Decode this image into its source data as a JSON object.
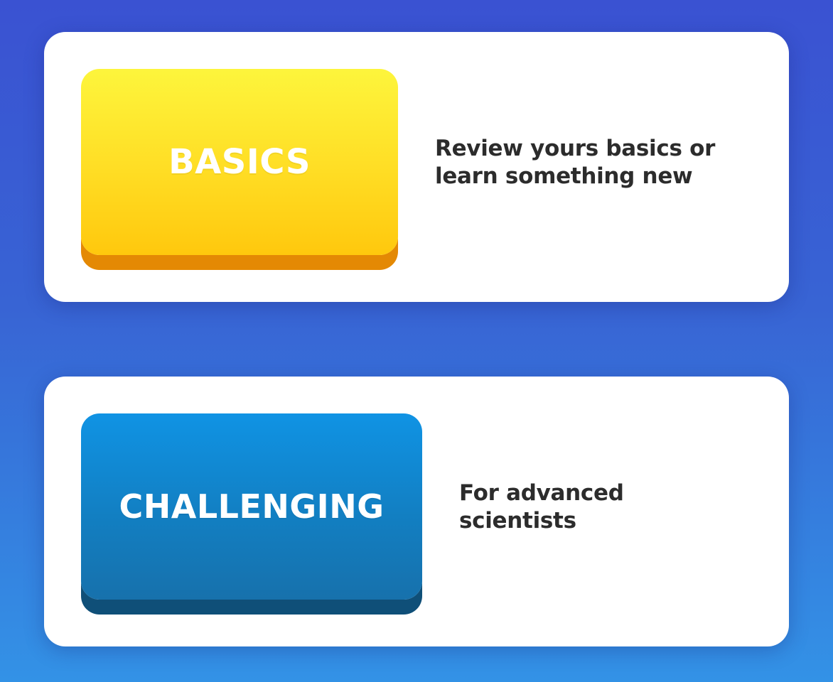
{
  "modes": {
    "basics": {
      "label": "BASICS",
      "description": "Review yours basics or learn something new",
      "color_top": "#fdf53c",
      "color_bottom": "#ffc80d",
      "color_shadow": "#e48904"
    },
    "challenging": {
      "label": "CHALLENGING",
      "description": "For advanced scientists",
      "color_top": "#1093e4",
      "color_bottom": "#1771ac",
      "color_shadow": "#0f4f78"
    }
  },
  "background": {
    "color_top": "#3a52d2",
    "color_bottom": "#3392e6"
  }
}
